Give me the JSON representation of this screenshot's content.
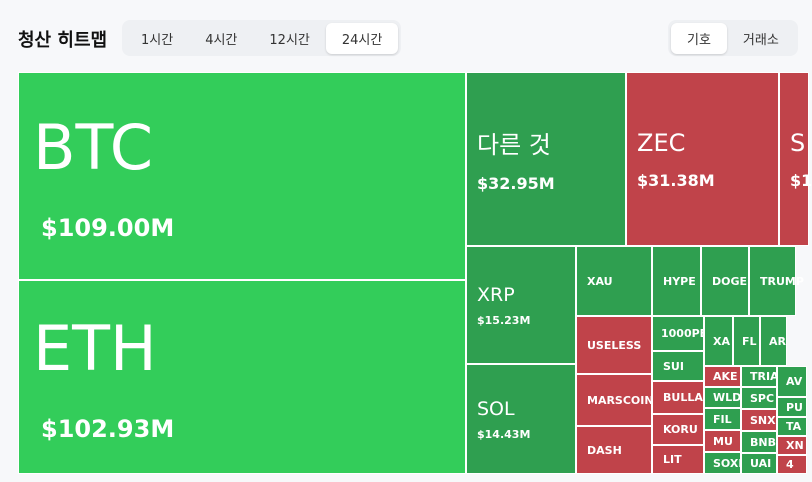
{
  "header": {
    "title": "청산 히트맵",
    "time_tabs": [
      {
        "label": "1시간",
        "active": false
      },
      {
        "label": "4시간",
        "active": false
      },
      {
        "label": "12시간",
        "active": false
      },
      {
        "label": "24시간",
        "active": true
      }
    ],
    "view_tabs": [
      {
        "label": "기호",
        "active": true
      },
      {
        "label": "거래소",
        "active": false
      }
    ]
  },
  "treemap": {
    "tiles": [
      {
        "label": "BTC",
        "value": "$109.00M",
        "color": "#33cd5a"
      },
      {
        "label": "ETH",
        "value": "$102.93M",
        "color": "#33cd5a"
      },
      {
        "label": "다른 것",
        "value": "$32.95M",
        "color": "#2f9f50"
      },
      {
        "label": "ZEC",
        "value": "$31.38M",
        "color": "#c0434a"
      },
      {
        "label": "S",
        "value": "$1",
        "color": "#c0434a"
      },
      {
        "label": "XRP",
        "value": "$15.23M",
        "color": "#2f9f50"
      },
      {
        "label": "SOL",
        "value": "$14.43M",
        "color": "#2f9f50"
      },
      {
        "label": "XAU",
        "color": "#2f9f50"
      },
      {
        "label": "HYPE",
        "color": "#2f9f50"
      },
      {
        "label": "DOGE",
        "color": "#2f9f50"
      },
      {
        "label": "TRUMP",
        "color": "#2f9f50"
      },
      {
        "label": "USELESS",
        "color": "#c0434a"
      },
      {
        "label": "MARSCOIN",
        "color": "#c0434a"
      },
      {
        "label": "DASH",
        "color": "#c0434a"
      },
      {
        "label": "1000PE",
        "color": "#2f9f50"
      },
      {
        "label": "SUI",
        "color": "#2f9f50"
      },
      {
        "label": "BULLA",
        "color": "#c0434a"
      },
      {
        "label": "KORU",
        "color": "#c0434a"
      },
      {
        "label": "LIT",
        "color": "#c0434a"
      },
      {
        "label": "XA",
        "color": "#2f9f50"
      },
      {
        "label": "FL",
        "color": "#2f9f50"
      },
      {
        "label": "AR",
        "color": "#2f9f50"
      },
      {
        "label": "AKE",
        "color": "#c0434a"
      },
      {
        "label": "WLD",
        "color": "#2f9f50"
      },
      {
        "label": "FIL",
        "color": "#2f9f50"
      },
      {
        "label": "MU",
        "color": "#c0434a"
      },
      {
        "label": "SOXL",
        "color": "#2f9f50"
      },
      {
        "label": "TRIA",
        "color": "#2f9f50"
      },
      {
        "label": "SPC",
        "color": "#2f9f50"
      },
      {
        "label": "SNX",
        "color": "#c0434a"
      },
      {
        "label": "BNB",
        "color": "#2f9f50"
      },
      {
        "label": "UAI",
        "color": "#2f9f50"
      },
      {
        "label": "AV",
        "color": "#2f9f50"
      },
      {
        "label": "PU",
        "color": "#2f9f50"
      },
      {
        "label": "TA",
        "color": "#2f9f50"
      },
      {
        "label": "XN",
        "color": "#c0434a"
      },
      {
        "label": "4",
        "color": "#c0434a"
      }
    ]
  }
}
